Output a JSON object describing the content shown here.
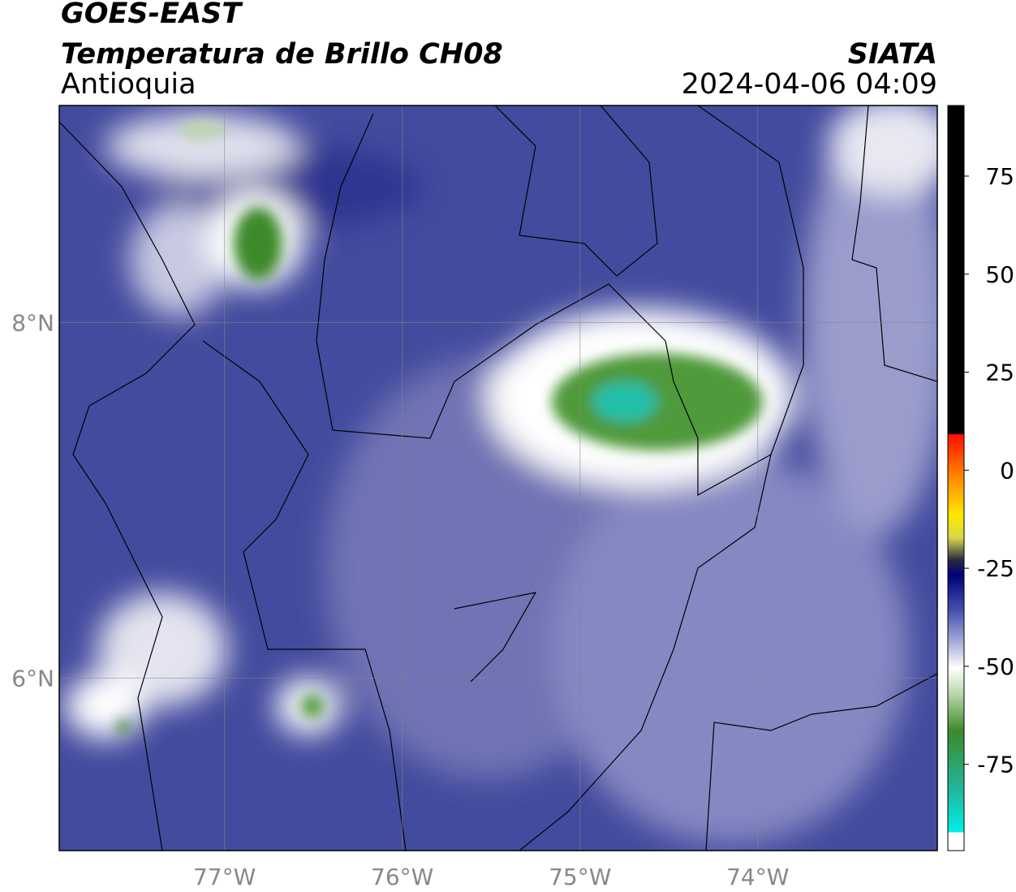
{
  "header": {
    "title": "GOES-EAST",
    "subtitle": "Temperatura de Brillo CH08",
    "region": "Antioquia",
    "source": "SIATA",
    "datetime": "2024-04-06 04:09"
  },
  "map": {
    "xlim": [
      -77.93,
      -72.99
    ],
    "ylim": [
      5.03,
      9.22
    ],
    "xticks": [
      {
        "value": -77,
        "label": "77°W"
      },
      {
        "value": -76,
        "label": "76°W"
      },
      {
        "value": -75,
        "label": "75°W"
      },
      {
        "value": -74,
        "label": "74°W"
      }
    ],
    "yticks": [
      {
        "value": 8,
        "label": "8°N"
      },
      {
        "value": 6,
        "label": "6°N"
      }
    ],
    "grid": true
  },
  "colorbar": {
    "lim": [
      -97,
      93
    ],
    "ticks": [
      75,
      50,
      25,
      0,
      -25,
      -50,
      -75
    ]
  }
}
